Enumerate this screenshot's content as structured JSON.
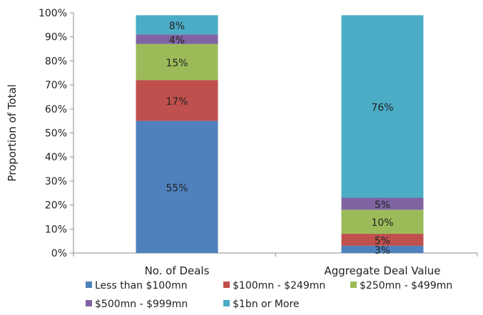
{
  "chart_data": {
    "type": "bar",
    "stacked": true,
    "ylabel": "Proportion of Total",
    "xlabel": "",
    "ylim": [
      0,
      100
    ],
    "y_ticks": [
      "0%",
      "10%",
      "20%",
      "30%",
      "40%",
      "50%",
      "60%",
      "70%",
      "80%",
      "90%",
      "100%"
    ],
    "categories": [
      "No. of Deals",
      "Aggregate Deal Value"
    ],
    "series": [
      {
        "name": "Less than $100mn",
        "color": "#4F81BD",
        "values": [
          55,
          3
        ],
        "labels": [
          "55%",
          "3%"
        ]
      },
      {
        "name": "$100mn - $249mn",
        "color": "#C0504D",
        "values": [
          17,
          5
        ],
        "labels": [
          "17%",
          "5%"
        ]
      },
      {
        "name": "$250mn - $499mn",
        "color": "#9BBB59",
        "values": [
          15,
          10
        ],
        "labels": [
          "15%",
          "10%"
        ]
      },
      {
        "name": "$500mn - $999mn",
        "color": "#8064A2",
        "values": [
          4,
          5
        ],
        "labels": [
          "4%",
          "5%"
        ]
      },
      {
        "name": "$1bn or More",
        "color": "#4BACC6",
        "values": [
          8,
          76
        ],
        "labels": [
          "8%",
          "76%"
        ]
      }
    ],
    "grid": false,
    "legend_position": "bottom"
  }
}
